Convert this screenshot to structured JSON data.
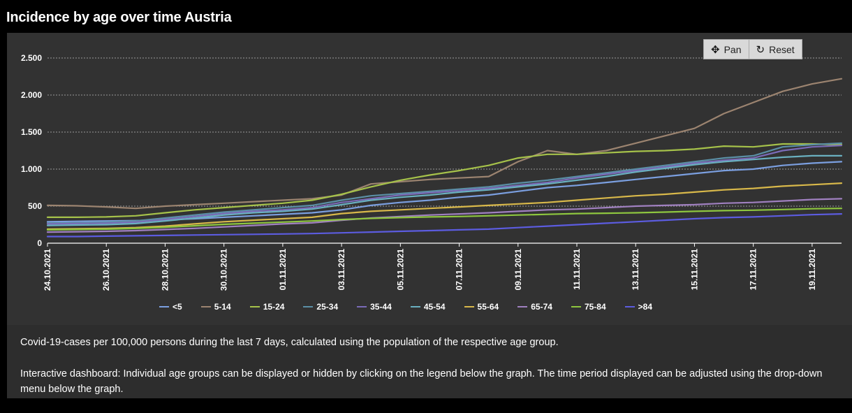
{
  "page_title": "Incidence by age over time Austria",
  "toolbar": {
    "pan_label": "Pan",
    "reset_label": "Reset"
  },
  "description": {
    "line1": "Covid-19-cases per 100,000 persons during the last 7 days, calculated using the population of the respective age group.",
    "line2": "Interactive dashboard: Individual age groups can be displayed or hidden by clicking on the legend below the graph. The time period displayed can be adjusted using the drop-down menu below the graph."
  },
  "chart_data": {
    "type": "line",
    "title": "",
    "xlabel": "",
    "ylabel": "",
    "ylim": [
      0,
      2500
    ],
    "y_ticks": [
      0,
      500,
      1000,
      1500,
      2000,
      2500
    ],
    "y_tick_labels": [
      "0",
      "500",
      "1.000",
      "1.500",
      "2.000",
      "2.500"
    ],
    "x_tick_labels": [
      "24.10.2021",
      "26.10.2021",
      "28.10.2021",
      "30.10.2021",
      "01.11.2021",
      "03.11.2021",
      "05.11.2021",
      "07.11.2021",
      "09.11.2021",
      "11.11.2021",
      "13.11.2021",
      "15.11.2021",
      "17.11.2021",
      "19.11.2021"
    ],
    "x_range": [
      "24.10.2021",
      "20.11.2021"
    ],
    "grid": true,
    "legend_position": "bottom",
    "x": [
      "24.10.2021",
      "25.10.2021",
      "26.10.2021",
      "27.10.2021",
      "28.10.2021",
      "29.10.2021",
      "30.10.2021",
      "31.10.2021",
      "01.11.2021",
      "02.11.2021",
      "03.11.2021",
      "04.11.2021",
      "05.11.2021",
      "06.11.2021",
      "07.11.2021",
      "08.11.2021",
      "09.11.2021",
      "10.11.2021",
      "11.11.2021",
      "12.11.2021",
      "13.11.2021",
      "14.11.2021",
      "15.11.2021",
      "16.11.2021",
      "17.11.2021",
      "18.11.2021",
      "19.11.2021",
      "20.11.2021"
    ],
    "series": [
      {
        "name": "<5",
        "color": "#7b9fe0",
        "values": [
          290,
          295,
          300,
          305,
          315,
          330,
          350,
          370,
          390,
          410,
          450,
          510,
          550,
          580,
          620,
          650,
          700,
          750,
          780,
          820,
          860,
          900,
          940,
          980,
          1000,
          1050,
          1080,
          1100
        ]
      },
      {
        "name": "5-14",
        "color": "#9c8470",
        "values": [
          510,
          505,
          490,
          470,
          500,
          520,
          540,
          560,
          580,
          600,
          650,
          800,
          830,
          860,
          880,
          900,
          1100,
          1250,
          1200,
          1250,
          1350,
          1450,
          1550,
          1750,
          1900,
          2050,
          2150,
          2220
        ]
      },
      {
        "name": "15-24",
        "color": "#a6c24a",
        "values": [
          350,
          350,
          355,
          370,
          410,
          450,
          480,
          510,
          540,
          580,
          660,
          760,
          850,
          920,
          980,
          1050,
          1150,
          1200,
          1200,
          1220,
          1240,
          1250,
          1270,
          1310,
          1300,
          1340,
          1340,
          1330
        ]
      },
      {
        "name": "25-34",
        "color": "#5b8fa6",
        "values": [
          270,
          275,
          285,
          300,
          340,
          380,
          420,
          450,
          480,
          510,
          580,
          640,
          670,
          700,
          730,
          760,
          810,
          850,
          900,
          950,
          1000,
          1050,
          1100,
          1150,
          1180,
          1300,
          1330,
          1350
        ]
      },
      {
        "name": "35-44",
        "color": "#7a6bb8",
        "values": [
          260,
          265,
          270,
          285,
          320,
          360,
          400,
          430,
          450,
          480,
          550,
          600,
          650,
          680,
          710,
          740,
          780,
          820,
          880,
          930,
          980,
          1030,
          1080,
          1120,
          1150,
          1250,
          1300,
          1320
        ]
      },
      {
        "name": "45-54",
        "color": "#6ab0c0",
        "values": [
          240,
          245,
          250,
          265,
          300,
          340,
          380,
          410,
          430,
          460,
          520,
          580,
          620,
          650,
          690,
          720,
          760,
          800,
          850,
          900,
          960,
          1010,
          1060,
          1100,
          1130,
          1160,
          1180,
          1180
        ]
      },
      {
        "name": "55-64",
        "color": "#d8b84a",
        "values": [
          190,
          195,
          200,
          210,
          230,
          260,
          290,
          310,
          330,
          350,
          400,
          430,
          450,
          470,
          490,
          510,
          530,
          550,
          580,
          610,
          640,
          660,
          690,
          720,
          740,
          770,
          790,
          810
        ]
      },
      {
        "name": "65-74",
        "color": "#a080c0",
        "values": [
          150,
          155,
          160,
          170,
          185,
          200,
          220,
          240,
          260,
          275,
          310,
          340,
          360,
          380,
          395,
          410,
          430,
          450,
          460,
          480,
          500,
          510,
          520,
          540,
          550,
          570,
          590,
          600
        ]
      },
      {
        "name": "75-84",
        "color": "#8ec63f",
        "values": [
          180,
          185,
          190,
          200,
          215,
          235,
          255,
          270,
          285,
          300,
          320,
          335,
          345,
          355,
          360,
          370,
          380,
          390,
          400,
          405,
          410,
          420,
          430,
          440,
          445,
          455,
          465,
          470
        ]
      },
      {
        "name": ">84",
        "color": "#5c5ce0",
        "values": [
          90,
          90,
          95,
          100,
          105,
          110,
          115,
          120,
          125,
          130,
          140,
          150,
          160,
          170,
          180,
          190,
          210,
          230,
          250,
          270,
          290,
          310,
          330,
          345,
          355,
          370,
          385,
          395
        ]
      }
    ]
  }
}
